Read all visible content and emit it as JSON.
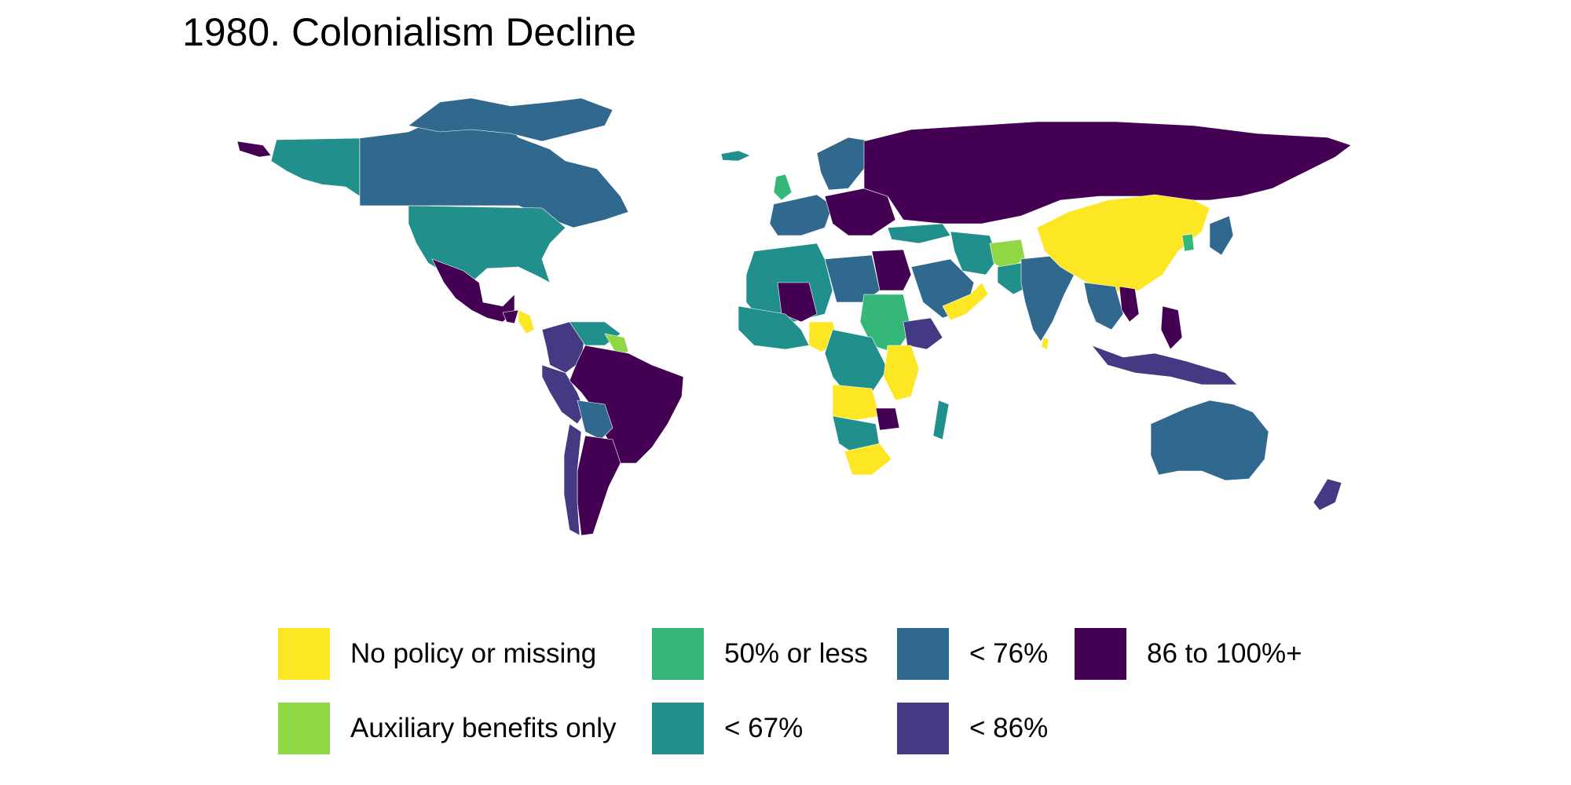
{
  "title": "1980. Colonialism Decline",
  "colors": {
    "no_policy": "#fde725",
    "auxiliary": "#8fd744",
    "le50": "#35b779",
    "lt67": "#21908c",
    "lt76": "#31688e",
    "lt86": "#443a83",
    "r86_100": "#440154"
  },
  "legend": [
    {
      "key": "no_policy",
      "label": "No policy or missing",
      "color": "#fde725"
    },
    {
      "key": "auxiliary",
      "label": "Auxiliary benefits only",
      "color": "#8fd744"
    },
    {
      "key": "le50",
      "label": "50% or less",
      "color": "#35b779"
    },
    {
      "key": "lt67",
      "label": "< 67%",
      "color": "#21908c"
    },
    {
      "key": "lt76",
      "label": "< 76%",
      "color": "#31688e"
    },
    {
      "key": "lt86",
      "label": "< 86%",
      "color": "#443a83"
    },
    {
      "key": "r86_100",
      "label": "86 to 100%+",
      "color": "#440154"
    }
  ]
}
